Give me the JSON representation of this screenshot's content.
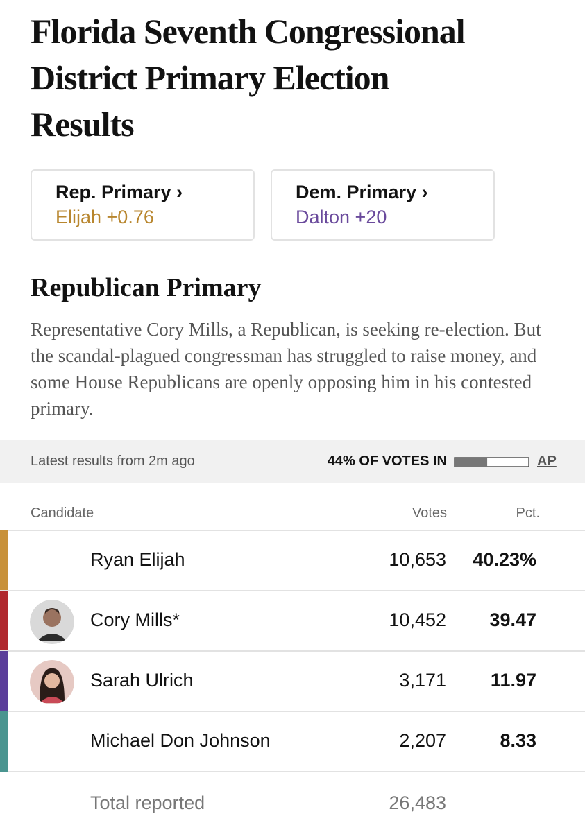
{
  "title": "Florida Seventh Congressional District Primary Election Results",
  "summary_cards": [
    {
      "label": "Rep. Primary ›",
      "leader": "Elijah +0.76",
      "color": "#b8862e"
    },
    {
      "label": "Dem. Primary ›",
      "leader": "Dalton +20",
      "color": "#6a4a9c"
    }
  ],
  "section": {
    "heading": "Republican Primary",
    "description": "Representative Cory Mills, a Republican, is seeking re-election. But the scandal-plagued congressman has struggled to raise money, and some House Republicans are openly opposing him in his contested primary."
  },
  "status": {
    "updated": "Latest results from 2m ago",
    "reporting": "44% OF VOTES IN",
    "reporting_pct": 44,
    "source": "AP"
  },
  "table": {
    "columns": [
      "Candidate",
      "Votes",
      "Pct."
    ],
    "rows": [
      {
        "name": "Ryan Elijah",
        "votes": "10,653",
        "pct": "40.23%",
        "color": "#c8913a"
      },
      {
        "name": "Cory Mills*",
        "votes": "10,452",
        "pct": "39.47",
        "color": "#b0282e"
      },
      {
        "name": "Sarah Ulrich",
        "votes": "3,171",
        "pct": "11.97",
        "color": "#5b3e9a"
      },
      {
        "name": "Michael Don Johnson",
        "votes": "2,207",
        "pct": "8.33",
        "color": "#4a9590"
      }
    ],
    "total": {
      "label": "Total reported",
      "votes": "26,483"
    }
  }
}
